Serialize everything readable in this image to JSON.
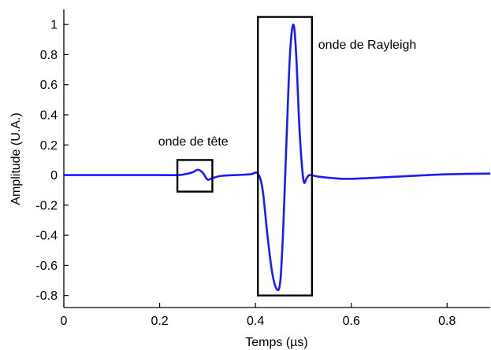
{
  "chart_data": {
    "type": "line",
    "title": "",
    "xlabel": "Temps (µs)",
    "ylabel": "Amplitude (U.A.)",
    "xlim": [
      0,
      0.89
    ],
    "ylim": [
      -0.88,
      1.1
    ],
    "x_ticks": [
      0,
      0.2,
      0.4,
      0.6,
      0.8
    ],
    "x_tick_labels": [
      "0",
      "0.2",
      "0.4",
      "0.6",
      "0.8"
    ],
    "y_ticks": [
      -0.8,
      -0.6,
      -0.4,
      -0.2,
      0,
      0.2,
      0.4,
      0.6,
      0.8,
      1
    ],
    "y_tick_labels": [
      "-0.8",
      "-0.6",
      "-0.4",
      "-0.2",
      "0",
      "0.2",
      "0.4",
      "0.6",
      "0.8",
      "1"
    ],
    "grid": false,
    "line_color": "#1a1aff",
    "series": [
      {
        "x": [
          0,
          0.1,
          0.2,
          0.24,
          0.26,
          0.27,
          0.28,
          0.29,
          0.3,
          0.31,
          0.33,
          0.36,
          0.39,
          0.405,
          0.415,
          0.425,
          0.435,
          0.445,
          0.452,
          0.458,
          0.465,
          0.472,
          0.479,
          0.485,
          0.492,
          0.5,
          0.507,
          0.513,
          0.53,
          0.56,
          0.6,
          0.7,
          0.8,
          0.89
        ],
        "y": [
          0,
          0,
          0,
          0,
          0.01,
          0.02,
          0.035,
          0.015,
          -0.03,
          -0.02,
          -0.005,
          0,
          0.005,
          0.01,
          -0.1,
          -0.4,
          -0.65,
          -0.76,
          -0.7,
          -0.35,
          0.25,
          0.8,
          1.0,
          0.8,
          0.3,
          -0.03,
          -0.02,
          0.0,
          -0.01,
          -0.02,
          -0.025,
          -0.01,
          0.005,
          0.01
        ]
      }
    ],
    "annotations": [
      {
        "name": "onde-de-tete",
        "text": "onde de tête",
        "box": {
          "x0": 0.237,
          "x1": 0.31,
          "y0": -0.11,
          "y1": 0.1
        },
        "label_at": {
          "x": 0.197,
          "y": 0.195
        }
      },
      {
        "name": "onde-de-rayleigh",
        "text": "onde de Rayleigh",
        "box": {
          "x0": 0.405,
          "x1": 0.518,
          "y0": -0.8,
          "y1": 1.05
        },
        "label_at": {
          "x": 0.531,
          "y": 0.84
        }
      }
    ]
  }
}
